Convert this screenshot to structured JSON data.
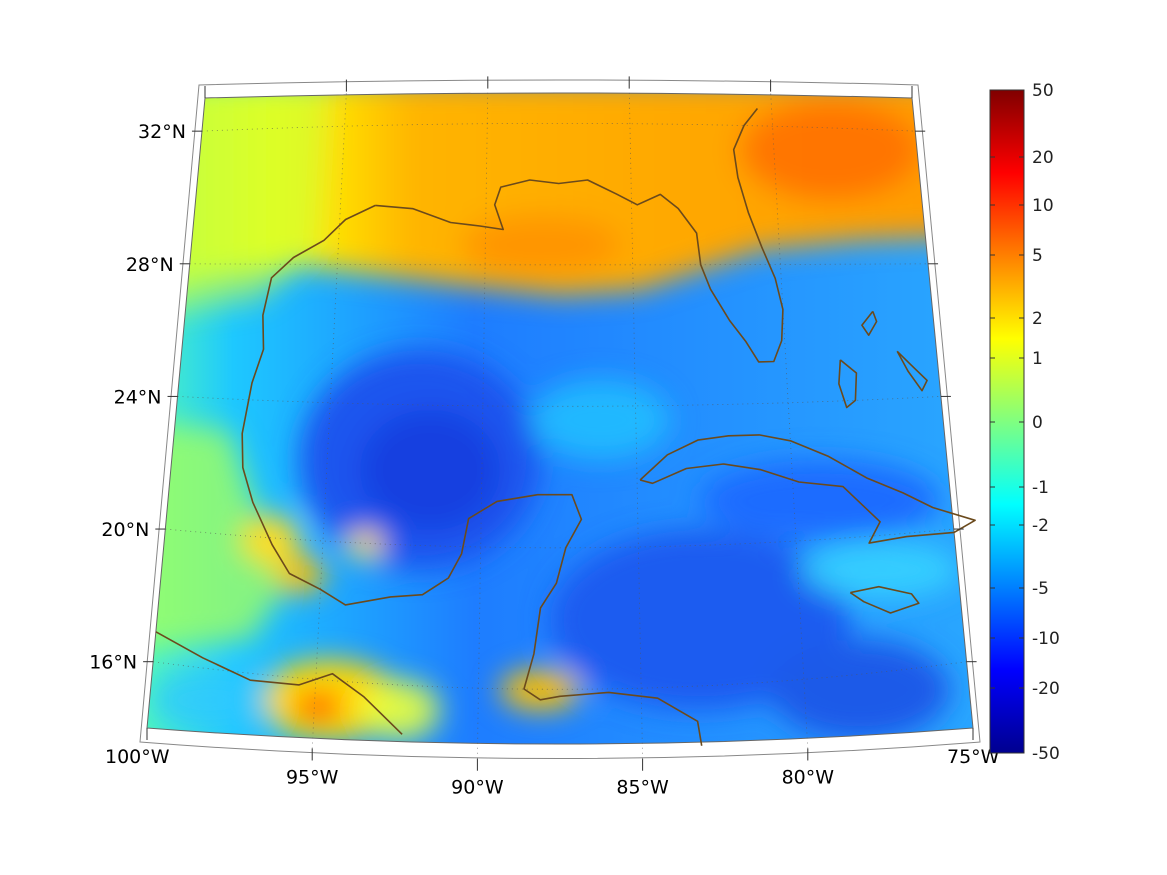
{
  "map": {
    "region": "Gulf of Mexico and Caribbean",
    "lon_range": [
      -100,
      -75
    ],
    "lat_range": [
      14,
      33
    ],
    "lat_labels": [
      {
        "value": 32,
        "text": "32°N"
      },
      {
        "value": 28,
        "text": "28°N"
      },
      {
        "value": 24,
        "text": "24°N"
      },
      {
        "value": 20,
        "text": "20°N"
      },
      {
        "value": 16,
        "text": "16°N"
      }
    ],
    "lon_labels": [
      {
        "value": -100,
        "text": "100°W"
      },
      {
        "value": -95,
        "text": "95°W"
      },
      {
        "value": -90,
        "text": "90°W"
      },
      {
        "value": -85,
        "text": "85°W"
      },
      {
        "value": -80,
        "text": "80°W"
      },
      {
        "value": -75,
        "text": "75°W"
      }
    ],
    "coastline_color": "#6b4a1c",
    "grid": "dotted"
  },
  "colorbar": {
    "colormap": "jet",
    "scale": "symmetric-log",
    "tick_labels": [
      "50",
      "20",
      "10",
      "5",
      "2",
      "1",
      "0",
      "-1",
      "-2",
      "-5",
      "-10",
      "-20",
      "-50"
    ],
    "colors": [
      "#00008f",
      "#0000ff",
      "#0080ff",
      "#00ffff",
      "#80ff80",
      "#ffff00",
      "#ff8000",
      "#ff0000",
      "#800000"
    ]
  }
}
